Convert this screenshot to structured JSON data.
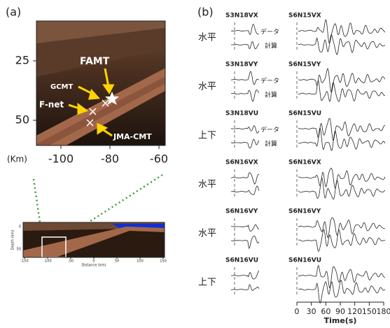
{
  "panel_a": {
    "label": "(a)",
    "xticks": [
      -100,
      -80,
      -60
    ],
    "yticks": [
      25,
      50
    ],
    "y_unit": "(Km)",
    "annotations": {
      "famt": "FAMT",
      "gcmt": "GCMT",
      "fnet": "F-net",
      "jma": "JMA-CMT"
    },
    "inset": {
      "xticks": [
        -150,
        -100,
        -50,
        0,
        50,
        100,
        150
      ],
      "yticks": [
        0,
        50
      ],
      "xlabel": "Distance (km)",
      "ylabel": "Depth (km)"
    }
  },
  "panel_b": {
    "label": "(b)",
    "rows": [
      {
        "component": "水平",
        "left": "S3N18VX",
        "right": "S6N15VX",
        "legend": [
          "データ",
          "計算"
        ]
      },
      {
        "component": "水平",
        "left": "S3N18VY",
        "right": "S6N15VY",
        "legend": [
          "データ",
          "計算"
        ]
      },
      {
        "component": "上下",
        "left": "S3N18VU",
        "right": "S6N15VU",
        "legend": [
          "データ",
          "計算"
        ]
      },
      {
        "component": "水平",
        "left": "S6N16VX",
        "right": "S6N16VX"
      },
      {
        "component": "水平",
        "left": "S6N16VY",
        "right": "S6N16VY"
      },
      {
        "component": "上下",
        "left": "S6N16VU",
        "right": "S6N16VU"
      }
    ],
    "xticks": [
      0,
      30,
      60,
      90,
      120,
      150,
      180
    ],
    "xlabel": "Time(s)"
  }
}
